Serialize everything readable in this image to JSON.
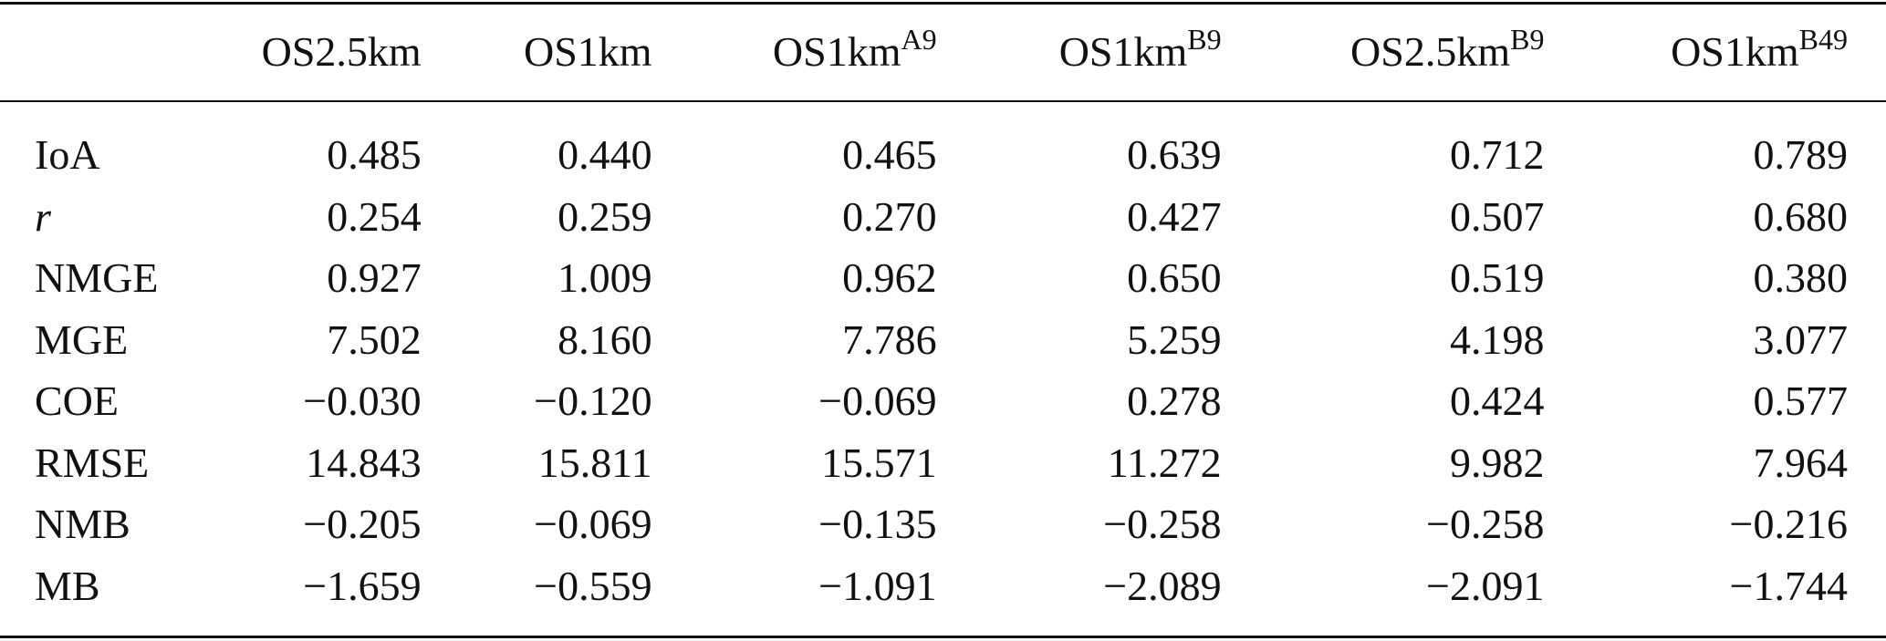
{
  "table": {
    "columns": [
      {
        "base": "OS2.5km",
        "sup": ""
      },
      {
        "base": "OS1km",
        "sup": ""
      },
      {
        "base": "OS1km",
        "sup": "A9"
      },
      {
        "base": "OS1km",
        "sup": "B9"
      },
      {
        "base": "OS2.5km",
        "sup": "B9"
      },
      {
        "base": "OS1km",
        "sup": "B49"
      }
    ],
    "rows": [
      {
        "label": "IoA",
        "values": [
          "0.485",
          "0.440",
          "0.465",
          "0.639",
          "0.712",
          "0.789"
        ]
      },
      {
        "label": "r",
        "values": [
          "0.254",
          "0.259",
          "0.270",
          "0.427",
          "0.507",
          "0.680"
        ]
      },
      {
        "label": "NMGE",
        "values": [
          "0.927",
          "1.009",
          "0.962",
          "0.650",
          "0.519",
          "0.380"
        ]
      },
      {
        "label": "MGE",
        "values": [
          "7.502",
          "8.160",
          "7.786",
          "5.259",
          "4.198",
          "3.077"
        ]
      },
      {
        "label": "COE",
        "values": [
          "−0.030",
          "−0.120",
          "−0.069",
          "0.278",
          "0.424",
          "0.577"
        ]
      },
      {
        "label": "RMSE",
        "values": [
          "14.843",
          "15.811",
          "15.571",
          "11.272",
          "9.982",
          "7.964"
        ]
      },
      {
        "label": "NMB",
        "values": [
          "−0.205",
          "−0.069",
          "−0.135",
          "−0.258",
          "−0.258",
          "−0.216"
        ]
      },
      {
        "label": "MB",
        "values": [
          "−1.659",
          "−0.559",
          "−1.091",
          "−2.089",
          "−2.091",
          "−1.744"
        ]
      }
    ]
  }
}
